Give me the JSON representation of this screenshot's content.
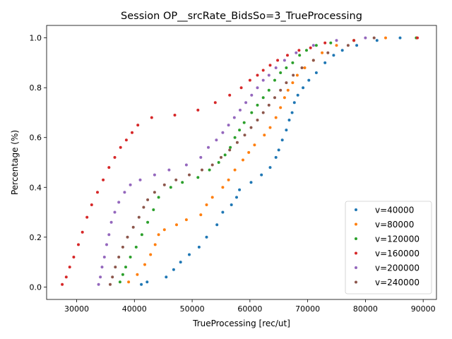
{
  "chart_data": {
    "type": "scatter",
    "title": "Session OP__srcRate_BidsSo=3_TrueProcessing",
    "xlabel": "TrueProcessing [rec/ut]",
    "ylabel": "Percentage (%)",
    "xlim": [
      24800,
      92300
    ],
    "ylim": [
      -0.05,
      1.05
    ],
    "xticks": [
      {
        "value": 30000,
        "label": "30000"
      },
      {
        "value": 40000,
        "label": "40000"
      },
      {
        "value": 50000,
        "label": "50000"
      },
      {
        "value": 60000,
        "label": "60000"
      },
      {
        "value": 70000,
        "label": "70000"
      },
      {
        "value": 80000,
        "label": "80000"
      },
      {
        "value": 90000,
        "label": "90000"
      }
    ],
    "yticks": [
      {
        "value": 0.0,
        "label": "0.0"
      },
      {
        "value": 0.2,
        "label": "0.2"
      },
      {
        "value": 0.4,
        "label": "0.4"
      },
      {
        "value": 0.6,
        "label": "0.6"
      },
      {
        "value": 0.8,
        "label": "0.8"
      },
      {
        "value": 1.0,
        "label": "1.0"
      }
    ],
    "grid": false,
    "legend_position": "lower-right",
    "series": [
      {
        "name": "v=40000",
        "color": "#1f77b4",
        "x": [
          41200,
          42200,
          45500,
          46800,
          48000,
          49500,
          51200,
          52500,
          54300,
          55300,
          56800,
          57700,
          58200,
          60200,
          62000,
          63500,
          64500,
          65000,
          65600,
          66300,
          66800,
          67300,
          67700,
          68300,
          69200,
          70200,
          71500,
          73000,
          74500,
          76000,
          78500,
          82000,
          86000
        ],
        "y": [
          0.01,
          0.02,
          0.04,
          0.07,
          0.1,
          0.13,
          0.16,
          0.2,
          0.25,
          0.3,
          0.33,
          0.36,
          0.39,
          0.42,
          0.45,
          0.48,
          0.52,
          0.55,
          0.59,
          0.63,
          0.67,
          0.7,
          0.74,
          0.77,
          0.8,
          0.83,
          0.86,
          0.9,
          0.93,
          0.95,
          0.97,
          0.99,
          1.0
        ]
      },
      {
        "name": "v=80000",
        "color": "#ff7f0e",
        "x": [
          39000,
          40500,
          41800,
          42800,
          43600,
          44200,
          45200,
          47300,
          49000,
          51500,
          52500,
          53500,
          55300,
          56300,
          57400,
          58800,
          59800,
          60800,
          62500,
          63500,
          64500,
          65300,
          66000,
          66600,
          67400,
          68200,
          69500,
          71000,
          72500,
          75000,
          78000,
          83500,
          88800
        ],
        "y": [
          0.02,
          0.05,
          0.09,
          0.13,
          0.17,
          0.21,
          0.23,
          0.25,
          0.27,
          0.29,
          0.33,
          0.36,
          0.4,
          0.43,
          0.47,
          0.51,
          0.54,
          0.57,
          0.61,
          0.64,
          0.68,
          0.72,
          0.76,
          0.79,
          0.82,
          0.85,
          0.88,
          0.91,
          0.94,
          0.97,
          0.99,
          1.0,
          1.0
        ]
      },
      {
        "name": "v=120000",
        "color": "#2ca02c",
        "x": [
          37500,
          38000,
          38500,
          39300,
          40300,
          41300,
          42300,
          43300,
          44200,
          46300,
          48300,
          51000,
          53000,
          54600,
          55700,
          56600,
          57400,
          58200,
          59000,
          60300,
          61300,
          62300,
          63300,
          64300,
          65300,
          66300,
          67400,
          68600,
          69800,
          71500,
          74000,
          78000,
          88800
        ],
        "y": [
          0.02,
          0.05,
          0.08,
          0.12,
          0.16,
          0.21,
          0.26,
          0.31,
          0.36,
          0.4,
          0.42,
          0.44,
          0.47,
          0.5,
          0.53,
          0.56,
          0.6,
          0.63,
          0.66,
          0.7,
          0.73,
          0.76,
          0.79,
          0.83,
          0.86,
          0.88,
          0.9,
          0.93,
          0.95,
          0.97,
          0.98,
          0.99,
          1.0
        ]
      },
      {
        "name": "v=160000",
        "color": "#d62728",
        "x": [
          27500,
          28200,
          28800,
          29500,
          30300,
          31000,
          31800,
          32600,
          33600,
          34600,
          35600,
          36600,
          37600,
          38600,
          39600,
          40600,
          43000,
          47000,
          51000,
          54000,
          56500,
          58500,
          60000,
          61300,
          62300,
          63500,
          64800,
          66500,
          68500,
          70500,
          73000,
          78000,
          89000
        ],
        "y": [
          0.01,
          0.04,
          0.08,
          0.12,
          0.17,
          0.22,
          0.28,
          0.33,
          0.38,
          0.43,
          0.48,
          0.52,
          0.56,
          0.59,
          0.62,
          0.65,
          0.68,
          0.69,
          0.71,
          0.74,
          0.77,
          0.8,
          0.83,
          0.85,
          0.87,
          0.89,
          0.91,
          0.93,
          0.95,
          0.96,
          0.98,
          0.99,
          1.0
        ]
      },
      {
        "name": "v=200000",
        "color": "#9467bd",
        "x": [
          33800,
          34100,
          34400,
          34800,
          35200,
          35600,
          36000,
          36600,
          37300,
          38300,
          39300,
          41000,
          43500,
          46000,
          49000,
          51500,
          52800,
          54200,
          55300,
          56300,
          57300,
          58300,
          59300,
          60300,
          61300,
          62300,
          63300,
          64500,
          66000,
          68000,
          71000,
          75000,
          80000
        ],
        "y": [
          0.01,
          0.04,
          0.08,
          0.12,
          0.17,
          0.21,
          0.26,
          0.3,
          0.34,
          0.38,
          0.41,
          0.43,
          0.45,
          0.47,
          0.49,
          0.52,
          0.56,
          0.59,
          0.62,
          0.65,
          0.68,
          0.71,
          0.74,
          0.77,
          0.8,
          0.83,
          0.85,
          0.88,
          0.91,
          0.94,
          0.97,
          0.99,
          1.0
        ]
      },
      {
        "name": "v=240000",
        "color": "#8c564b",
        "x": [
          35800,
          36200,
          36700,
          37300,
          38000,
          38800,
          39800,
          40800,
          41600,
          42300,
          43500,
          45200,
          47200,
          49500,
          51700,
          53500,
          55000,
          56500,
          57800,
          59100,
          60200,
          61300,
          62300,
          63300,
          64300,
          65300,
          66300,
          67500,
          69000,
          71000,
          73500,
          77000,
          81500
        ],
        "y": [
          0.01,
          0.04,
          0.08,
          0.12,
          0.16,
          0.2,
          0.24,
          0.28,
          0.32,
          0.35,
          0.38,
          0.41,
          0.43,
          0.45,
          0.47,
          0.49,
          0.52,
          0.55,
          0.58,
          0.61,
          0.64,
          0.67,
          0.7,
          0.73,
          0.76,
          0.79,
          0.82,
          0.85,
          0.88,
          0.91,
          0.94,
          0.97,
          1.0
        ]
      }
    ]
  }
}
